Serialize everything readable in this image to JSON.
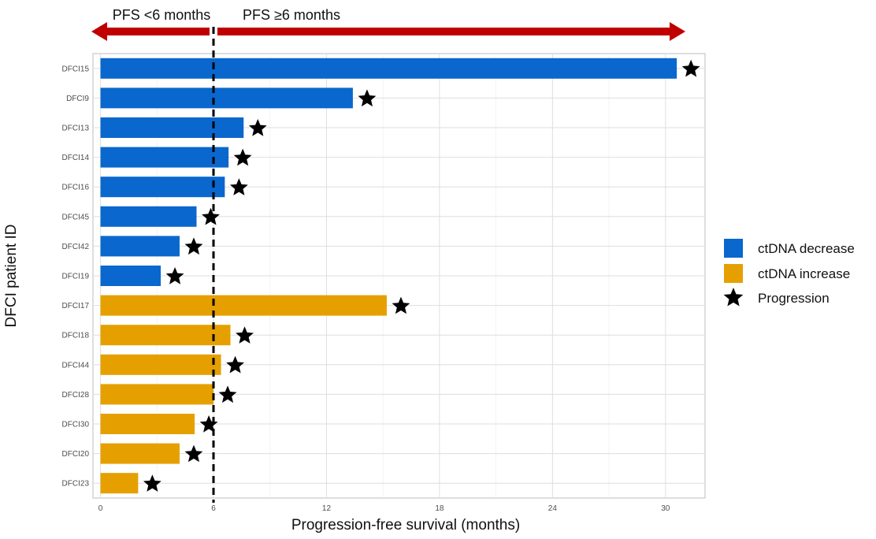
{
  "chart_data": {
    "type": "bar",
    "orientation": "horizontal",
    "categories": [
      "DFCI15",
      "DFCI9",
      "DFCI13",
      "DFCI14",
      "DFCI16",
      "DFCI45",
      "DFCI42",
      "DFCI19",
      "DFCI17",
      "DFCI18",
      "DFCI44",
      "DFCI28",
      "DFCI30",
      "DFCI20",
      "DFCI23"
    ],
    "values": [
      30.6,
      13.4,
      7.6,
      6.8,
      6.6,
      5.1,
      4.2,
      3.2,
      15.2,
      6.9,
      6.4,
      6.0,
      5.0,
      4.2,
      2.0
    ],
    "groups": [
      "ctDNA decrease",
      "ctDNA decrease",
      "ctDNA decrease",
      "ctDNA decrease",
      "ctDNA decrease",
      "ctDNA decrease",
      "ctDNA decrease",
      "ctDNA decrease",
      "ctDNA increase",
      "ctDNA increase",
      "ctDNA increase",
      "ctDNA increase",
      "ctDNA increase",
      "ctDNA increase",
      "ctDNA increase"
    ],
    "progression": [
      true,
      true,
      true,
      true,
      true,
      true,
      true,
      true,
      true,
      true,
      true,
      true,
      true,
      true,
      true
    ],
    "xlabel": "Progression-free survival (months)",
    "ylabel": "DFCI patient ID",
    "xlim": [
      -0.4,
      32.1
    ],
    "xticks": [
      0,
      6,
      12,
      18,
      24,
      30
    ],
    "xtick_labels": [
      "0",
      "6",
      "12",
      "18",
      "24",
      "30"
    ],
    "reference_line": {
      "x": 6,
      "style": "dashed"
    },
    "annotations": {
      "left_label": "PFS <6 months",
      "right_label": "PFS ≥6 months"
    },
    "legend": {
      "placement": "right",
      "items": [
        {
          "label": "ctDNA decrease",
          "color": "#0A67CE",
          "shape": "square"
        },
        {
          "label": "ctDNA increase",
          "color": "#E5A000",
          "shape": "square"
        },
        {
          "label": "Progression",
          "color": "#000000",
          "shape": "star"
        }
      ]
    },
    "colors": {
      "ctDNA decrease": "#0A67CE",
      "ctDNA increase": "#E5A000",
      "arrow": "#C00000"
    },
    "grid": true
  }
}
